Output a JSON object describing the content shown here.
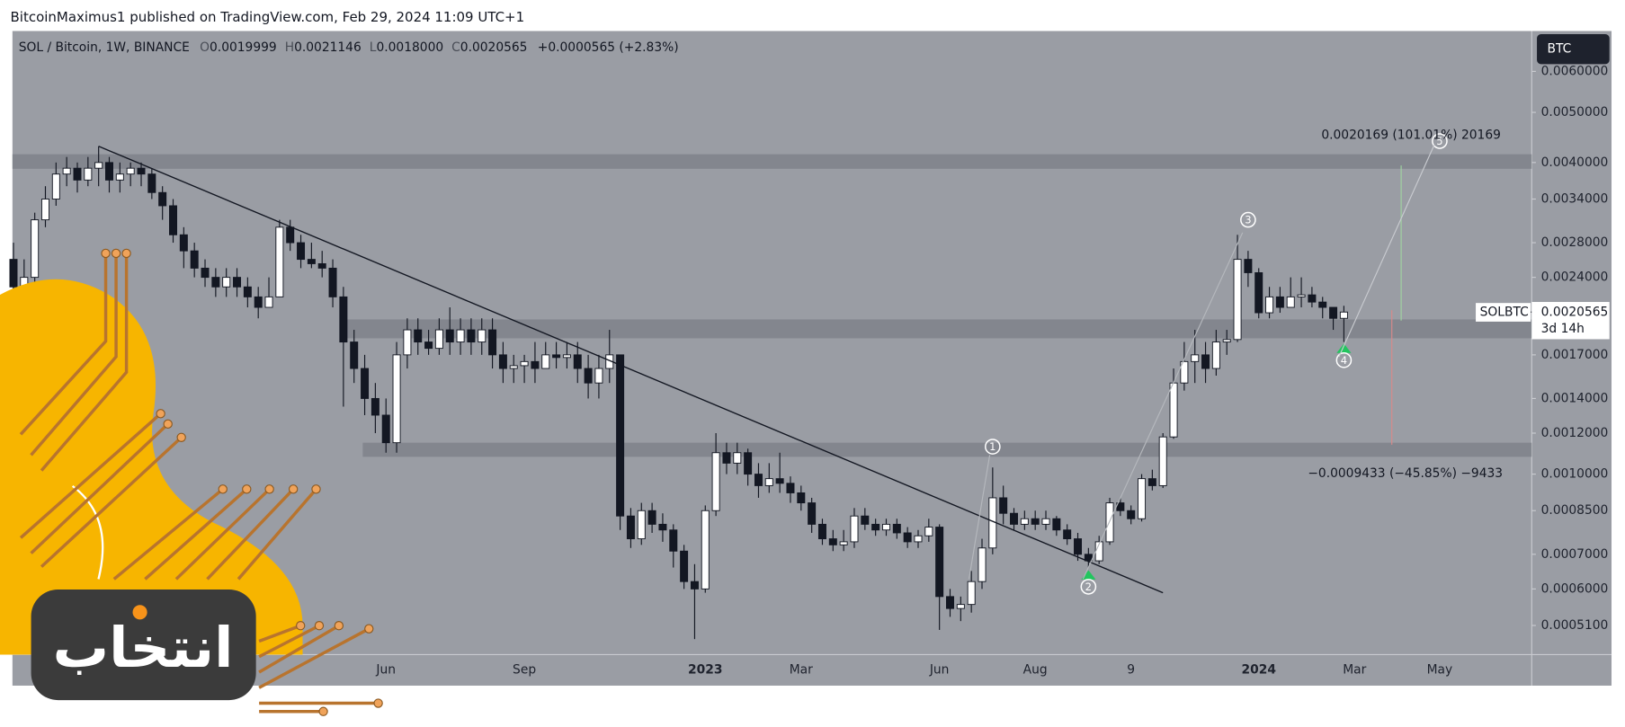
{
  "header": "BitcoinMaximus1 published on TradingView.com, Feb 29, 2024 11:09 UTC+1",
  "watermark": "انتخاب",
  "chart_data": {
    "type": "candlestick",
    "title": "SOL / Bitcoin, 1W, BINANCE",
    "ohlc_legend": [
      {
        "key": "O",
        "value": "0.0019999"
      },
      {
        "key": "H",
        "value": "0.0021146"
      },
      {
        "key": "L",
        "value": "0.0018000"
      },
      {
        "key": "C",
        "value": "0.0020565"
      }
    ],
    "change": "+0.0000565 (+2.83%)",
    "currency": "BTC",
    "categories": [
      null,
      null,
      null,
      null,
      null,
      null,
      null,
      null,
      null,
      null,
      null,
      null,
      null,
      null,
      null,
      null,
      null,
      null,
      null,
      null,
      null,
      null,
      null,
      null,
      null,
      null,
      null,
      null,
      null,
      null,
      null,
      null,
      null,
      null,
      null,
      "Jun",
      null,
      null,
      null,
      null,
      null,
      null,
      null,
      null,
      null,
      null,
      null,
      null,
      "Sep",
      null,
      null,
      null,
      null,
      null,
      null,
      null,
      null,
      null,
      null,
      null,
      null,
      null,
      null,
      null,
      null,
      "2023",
      null,
      null,
      null,
      null,
      null,
      null,
      null,
      null,
      "Mar",
      null,
      null,
      null,
      null,
      null,
      null,
      null,
      null,
      null,
      null,
      null,
      null,
      "Jun",
      null,
      null,
      null,
      null,
      null,
      null,
      null,
      null,
      "Aug",
      null,
      null,
      null,
      null,
      null,
      null,
      null,
      null,
      "9",
      null,
      null,
      null,
      null,
      null,
      null,
      null,
      null,
      null,
      null,
      null,
      "2024",
      null,
      null,
      null,
      null,
      null,
      null,
      null,
      null,
      "Mar",
      null,
      null,
      null,
      null,
      null,
      null,
      null,
      "May"
    ],
    "open": [
      0.0026,
      0.0023,
      0.0024,
      0.0031,
      0.0034,
      0.0038,
      0.0039,
      0.0037,
      0.0039,
      0.004,
      0.0037,
      0.0038,
      0.0039,
      0.0038,
      0.0035,
      0.0033,
      0.0029,
      0.0027,
      0.0025,
      0.0024,
      0.0023,
      0.0024,
      0.0023,
      0.0022,
      0.0021,
      0.0022,
      0.003,
      0.0028,
      0.0026,
      0.00255,
      0.0025,
      0.0022,
      0.0018,
      0.0016,
      0.0014,
      0.0013,
      0.00115,
      0.0017,
      0.0019,
      0.0018,
      0.00175,
      0.0019,
      0.0018,
      0.0019,
      0.0018,
      0.0019,
      0.0017,
      0.0016,
      0.00162,
      0.00165,
      0.0016,
      0.0017,
      0.00168,
      0.0017,
      0.0016,
      0.0015,
      0.0016,
      0.0017,
      0.00083,
      0.00075,
      0.00085,
      0.0008,
      0.00078,
      0.00071,
      0.00062,
      0.0006,
      0.00085,
      0.0011,
      0.00105,
      0.0011,
      0.001,
      0.00095,
      0.00098,
      0.00096,
      0.00092,
      0.00088,
      0.0008,
      0.00075,
      0.00073,
      0.00074,
      0.00083,
      0.0008,
      0.00078,
      0.0008,
      0.00077,
      0.00074,
      0.00076,
      0.00079,
      0.00058,
      0.00055,
      0.00056,
      0.00062,
      0.00072,
      0.0009,
      0.00084,
      0.0008,
      0.00082,
      0.0008,
      0.00082,
      0.00078,
      0.00075,
      0.0007,
      0.00068,
      0.00074,
      0.00088,
      0.00085,
      0.00082,
      0.00098,
      0.00095,
      0.00118,
      0.0015,
      0.00165,
      0.0017,
      0.0016,
      0.0018,
      0.00182,
      0.0026,
      0.00245,
      0.00205,
      0.0022,
      0.0021,
      0.0022,
      0.00222,
      0.00215,
      0.0021,
      0.0019999,
      null,
      null,
      null,
      null,
      null,
      null,
      null,
      null,
      null
    ],
    "high": [
      0.0028,
      0.0026,
      0.0032,
      0.0036,
      0.004,
      0.0041,
      0.004,
      0.0041,
      0.0043,
      0.0041,
      0.004,
      0.004,
      0.004,
      0.0039,
      0.0036,
      0.0034,
      0.003,
      0.0028,
      0.0026,
      0.0025,
      0.0025,
      0.0025,
      0.0024,
      0.0023,
      0.0024,
      0.0031,
      0.0031,
      0.0029,
      0.0028,
      0.0027,
      0.0026,
      0.0023,
      0.0019,
      0.0017,
      0.0015,
      0.0014,
      0.0018,
      0.002,
      0.002,
      0.0019,
      0.002,
      0.0021,
      0.002,
      0.002,
      0.002,
      0.002,
      0.0018,
      0.0017,
      0.0017,
      0.0018,
      0.0018,
      0.0018,
      0.0018,
      0.0018,
      0.0017,
      0.0017,
      0.0019,
      0.0017,
      0.00086,
      0.00088,
      0.00088,
      0.00084,
      0.0008,
      0.00073,
      0.00067,
      0.00087,
      0.0012,
      0.00115,
      0.00115,
      0.00112,
      0.00105,
      0.00105,
      0.0011,
      0.00099,
      0.00095,
      0.0009,
      0.00082,
      0.00078,
      0.00078,
      0.00086,
      0.00086,
      0.00082,
      0.00082,
      0.00082,
      0.00079,
      0.00078,
      0.00082,
      0.0008,
      0.0006,
      0.00058,
      0.00065,
      0.00075,
      0.00103,
      0.00095,
      0.00086,
      0.00085,
      0.00085,
      0.00085,
      0.00083,
      0.0008,
      0.00077,
      0.00072,
      0.00076,
      0.0009,
      0.0009,
      0.00087,
      0.001,
      0.00102,
      0.0012,
      0.0016,
      0.0018,
      0.0019,
      0.0018,
      0.0019,
      0.0019,
      0.0029,
      0.0027,
      0.0025,
      0.0023,
      0.0023,
      0.0024,
      0.0024,
      0.0023,
      0.0022,
      0.0021,
      0.0021146,
      null,
      null,
      null,
      null,
      null,
      null,
      null,
      null,
      null
    ],
    "low": [
      0.0021,
      0.0021,
      0.0023,
      0.003,
      0.0033,
      0.0036,
      0.0035,
      0.0036,
      0.0036,
      0.0035,
      0.0035,
      0.0036,
      0.0036,
      0.0034,
      0.0031,
      0.0028,
      0.0025,
      0.0024,
      0.0023,
      0.0022,
      0.0022,
      0.0022,
      0.0021,
      0.002,
      0.0021,
      0.0022,
      0.0027,
      0.0025,
      0.0025,
      0.0024,
      0.0021,
      0.00135,
      0.0015,
      0.0013,
      0.0012,
      0.0011,
      0.0011,
      0.0016,
      0.0017,
      0.0017,
      0.0017,
      0.0017,
      0.0017,
      0.0017,
      0.0017,
      0.0016,
      0.0015,
      0.0015,
      0.0015,
      0.0015,
      0.0016,
      0.0016,
      0.0016,
      0.0015,
      0.0014,
      0.0014,
      0.0015,
      0.00078,
      0.00072,
      0.00073,
      0.00077,
      0.00074,
      0.00066,
      0.0006,
      0.00048,
      0.00059,
      0.00083,
      0.001,
      0.001,
      0.00095,
      0.0009,
      0.00092,
      0.00092,
      0.00088,
      0.00085,
      0.00077,
      0.00073,
      0.00071,
      0.00071,
      0.00072,
      0.00078,
      0.00076,
      0.00076,
      0.00075,
      0.00072,
      0.00072,
      0.00074,
      0.0005,
      0.00053,
      0.00052,
      0.00054,
      0.0006,
      0.0007,
      0.0008,
      0.00078,
      0.00078,
      0.00078,
      0.00078,
      0.00076,
      0.00073,
      0.00068,
      0.00066,
      0.00067,
      0.00073,
      0.00083,
      0.0008,
      0.00081,
      0.00093,
      0.00094,
      0.00117,
      0.00145,
      0.0015,
      0.0015,
      0.00155,
      0.0017,
      0.0018,
      0.0023,
      0.002,
      0.002,
      0.00205,
      0.0021,
      0.0021,
      0.0021,
      0.002,
      0.0019,
      0.0018,
      null,
      null,
      null,
      null,
      null,
      null,
      null,
      null,
      null
    ],
    "close": [
      0.0023,
      0.0024,
      0.0031,
      0.0034,
      0.0038,
      0.0039,
      0.0037,
      0.0039,
      0.004,
      0.0037,
      0.0038,
      0.0039,
      0.0038,
      0.0035,
      0.0033,
      0.0029,
      0.0027,
      0.0025,
      0.0024,
      0.0023,
      0.0024,
      0.0023,
      0.0022,
      0.0021,
      0.0022,
      0.003,
      0.0028,
      0.0026,
      0.00255,
      0.0025,
      0.0022,
      0.0018,
      0.0016,
      0.0014,
      0.0013,
      0.00115,
      0.0017,
      0.0019,
      0.0018,
      0.00175,
      0.0019,
      0.0018,
      0.0019,
      0.0018,
      0.0019,
      0.0017,
      0.0016,
      0.00162,
      0.00165,
      0.0016,
      0.0017,
      0.00168,
      0.0017,
      0.0016,
      0.0015,
      0.0016,
      0.0017,
      0.00083,
      0.00075,
      0.00085,
      0.0008,
      0.00078,
      0.00071,
      0.00062,
      0.0006,
      0.00085,
      0.0011,
      0.00105,
      0.0011,
      0.001,
      0.00095,
      0.00098,
      0.00096,
      0.00092,
      0.00088,
      0.0008,
      0.00075,
      0.00073,
      0.00074,
      0.00083,
      0.0008,
      0.00078,
      0.0008,
      0.00077,
      0.00074,
      0.00076,
      0.00079,
      0.00058,
      0.00055,
      0.00056,
      0.00062,
      0.00072,
      0.0009,
      0.00084,
      0.0008,
      0.00082,
      0.0008,
      0.00082,
      0.00078,
      0.00075,
      0.0007,
      0.00068,
      0.00074,
      0.00088,
      0.00085,
      0.00082,
      0.00098,
      0.00095,
      0.00118,
      0.0015,
      0.00165,
      0.0017,
      0.0016,
      0.0018,
      0.00182,
      0.0026,
      0.00245,
      0.00205,
      0.0022,
      0.0021,
      0.0022,
      0.00222,
      0.00215,
      0.0021,
      0.0019999,
      0.0020565,
      null,
      null,
      null,
      null,
      null,
      null,
      null,
      null,
      null
    ],
    "colors": {
      "up": "#ffffff",
      "down": "#131722",
      "zone": "#7b7f87",
      "background": "#9a9da4"
    },
    "log_scale": true,
    "ylim": [
      0.000448,
      0.00718
    ],
    "yticks": [
      {
        "value": 0.006,
        "label": "0.0060000"
      },
      {
        "value": 0.005,
        "label": "0.0050000"
      },
      {
        "value": 0.004,
        "label": "0.0040000"
      },
      {
        "value": 0.0034,
        "label": "0.0034000"
      },
      {
        "value": 0.0028,
        "label": "0.0028000"
      },
      {
        "value": 0.0024,
        "label": "0.0024000"
      },
      {
        "value": 0.0017,
        "label": "0.0017000"
      },
      {
        "value": 0.0014,
        "label": "0.0014000"
      },
      {
        "value": 0.0012,
        "label": "0.0012000"
      },
      {
        "value": 0.001,
        "label": "0.0010000"
      },
      {
        "value": 0.00085,
        "label": "0.0008500"
      },
      {
        "value": 0.0007,
        "label": "0.0007000"
      },
      {
        "value": 0.0006,
        "label": "0.0006000"
      },
      {
        "value": 0.00051,
        "label": "0.0005100"
      }
    ],
    "last_price": {
      "symbol": "SOLBTC",
      "value": 0.0020565,
      "label": "0.0020565",
      "countdown": "3d 14h"
    },
    "zones": [
      [
        0.00389,
        0.00415
      ],
      [
        0.00183,
        0.00199
      ],
      [
        0.00108,
        0.00115
      ]
    ],
    "trendline": {
      "x": [
        8,
        108
      ],
      "y": [
        0.0043,
        0.00059
      ]
    },
    "waves": [
      {
        "label": "1",
        "x": 92,
        "y": 0.00113
      },
      {
        "label": "2",
        "x": 101,
        "y": 0.000606
      },
      {
        "label": "3",
        "x": 116,
        "y": 0.0031
      },
      {
        "label": "4",
        "x": 125,
        "y": 0.00166
      },
      {
        "label": "5",
        "x": 134,
        "y": 0.0044
      }
    ],
    "measures": [
      "0.0020169 (101.01%) 20169",
      "−0.0009433 (−45.85%) −9433"
    ]
  }
}
